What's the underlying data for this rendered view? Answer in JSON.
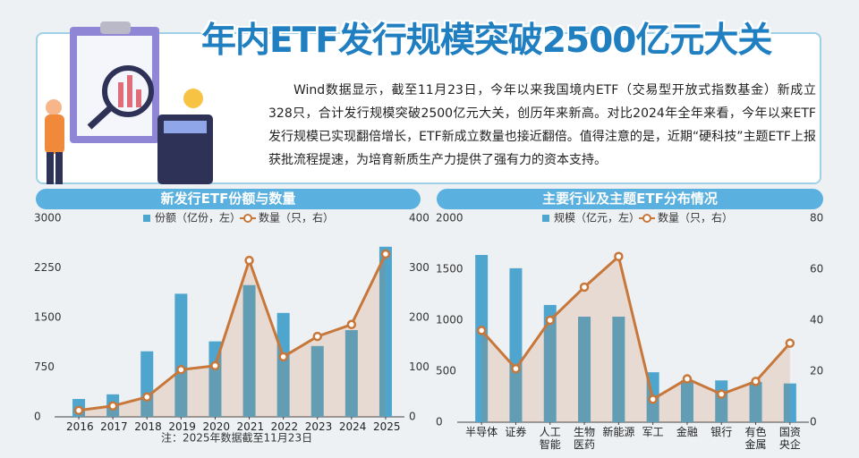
{
  "header": {
    "title": "年内ETF发行规模突破2500亿元大关",
    "body": "Wind数据显示，截至11月23日，今年以来我国境内ETF（交易型开放式指数基金）新成立328只，合计发行规模突破2500亿元大关，创历年来新高。对比2024年全年来看，今年以来ETF发行规模已实现翻倍增长，ETF新成立数量也接近翻倍。值得注意的是，近期“硬科技”主题ETF上报获批流程提速，为培育新质生产力提供了强有力的资本支持。"
  },
  "chart_data": [
    {
      "type": "bar-line",
      "title": "新发行ETF份额与数量",
      "note": "注：2025年数据截至11月23日",
      "categories": [
        "2016",
        "2017",
        "2018",
        "2019",
        "2020",
        "2021",
        "2022",
        "2023",
        "2024",
        "2025"
      ],
      "series": [
        {
          "name": "份额（亿份，左）",
          "type": "bar",
          "color": "#4ea6cf",
          "values": [
            270,
            340,
            990,
            1860,
            1140,
            1990,
            1570,
            1070,
            1310,
            2570
          ]
        },
        {
          "name": "数量（只，右）",
          "type": "line",
          "axis": "y2",
          "color": "#c8773a",
          "values": [
            13,
            22,
            40,
            95,
            103,
            315,
            121,
            162,
            186,
            328
          ]
        }
      ],
      "ylim": [
        0,
        3000
      ],
      "yticks": [
        0,
        750,
        1500,
        2250,
        3000
      ],
      "y2lim": [
        0,
        400
      ],
      "y2ticks": [
        0,
        100,
        200,
        300,
        400
      ],
      "grid": false
    },
    {
      "type": "bar-line",
      "title": "主要行业及主题ETF分布情况",
      "categories": [
        "半导体",
        "证券",
        "人工智能",
        "生物医药",
        "新能源",
        "军工",
        "金融",
        "银行",
        "有色金属",
        "国资央企"
      ],
      "series": [
        {
          "name": "规模（亿元，左）",
          "type": "bar",
          "color": "#4ea6cf",
          "values": [
            1640,
            1510,
            1150,
            1035,
            1035,
            490,
            410,
            410,
            395,
            380
          ]
        },
        {
          "name": "数量（只，右）",
          "type": "line",
          "axis": "y2",
          "color": "#c8773a",
          "values": [
            36,
            21,
            40,
            53,
            65,
            9,
            17,
            11,
            16,
            31
          ]
        }
      ],
      "ylim": [
        0,
        2000
      ],
      "yticks": [
        0,
        500,
        1000,
        1500,
        2000
      ],
      "y2lim": [
        0,
        80
      ],
      "y2ticks": [
        0,
        20,
        40,
        60,
        80
      ],
      "grid": false
    }
  ]
}
